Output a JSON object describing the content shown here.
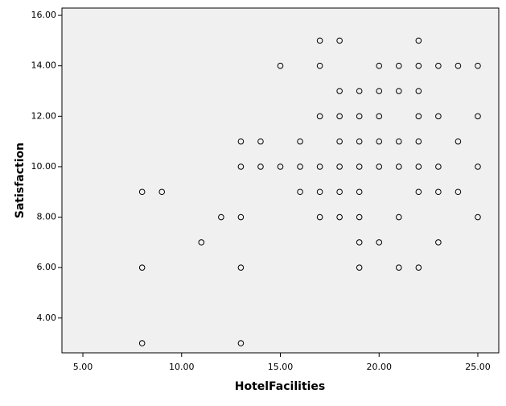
{
  "chart_data": {
    "type": "scatter",
    "x_label": "HotelFacilities",
    "y_label": "Satisfaction",
    "series": [
      {
        "color": "#000000",
        "x": [
          17,
          18,
          22,
          15,
          17,
          20,
          21,
          22,
          23,
          24,
          25,
          18,
          19,
          20,
          21,
          22,
          17,
          18,
          19,
          20,
          22,
          23,
          25,
          13,
          14,
          16,
          18,
          19,
          20,
          21,
          22,
          24,
          13,
          14,
          15,
          16,
          17,
          18,
          19,
          20,
          21,
          22,
          23,
          25,
          8,
          9,
          16,
          17,
          18,
          19,
          22,
          23,
          24,
          12,
          13,
          17,
          18,
          19,
          21,
          25,
          11,
          19,
          20,
          23,
          8,
          13,
          19,
          21,
          22,
          8,
          13
        ],
        "values": [
          15,
          15,
          15,
          14,
          14,
          14,
          14,
          14,
          14,
          14,
          14,
          13,
          13,
          13,
          13,
          13,
          12,
          12,
          12,
          12,
          12,
          12,
          12,
          11,
          11,
          11,
          11,
          11,
          11,
          11,
          11,
          11,
          10,
          10,
          10,
          10,
          10,
          10,
          10,
          10,
          10,
          10,
          10,
          10,
          9,
          9,
          9,
          9,
          9,
          9,
          9,
          9,
          9,
          8,
          8,
          8,
          8,
          8,
          8,
          8,
          7,
          7,
          7,
          7,
          6,
          6,
          6,
          6,
          6,
          3,
          3
        ]
      }
    ],
    "xlim": [
      3.94,
      26.06
    ],
    "xticks": [
      {
        "value": 5,
        "label": "5.00"
      },
      {
        "value": 10,
        "label": "10.00"
      },
      {
        "value": 15,
        "label": "15.00"
      },
      {
        "value": 20,
        "label": "20.00"
      },
      {
        "value": 25,
        "label": "25.00"
      }
    ],
    "ylim": [
      2.62,
      16.29
    ],
    "yticks": [
      {
        "value": 4,
        "label": "4.00"
      },
      {
        "value": 6,
        "label": "6.00"
      },
      {
        "value": 8,
        "label": "8.00"
      },
      {
        "value": 10,
        "label": "10.00"
      },
      {
        "value": 12,
        "label": "12.00"
      },
      {
        "value": 14,
        "label": "14.00"
      },
      {
        "value": 16,
        "label": "16.00"
      }
    ],
    "plot_background": "#f0f0f0"
  }
}
